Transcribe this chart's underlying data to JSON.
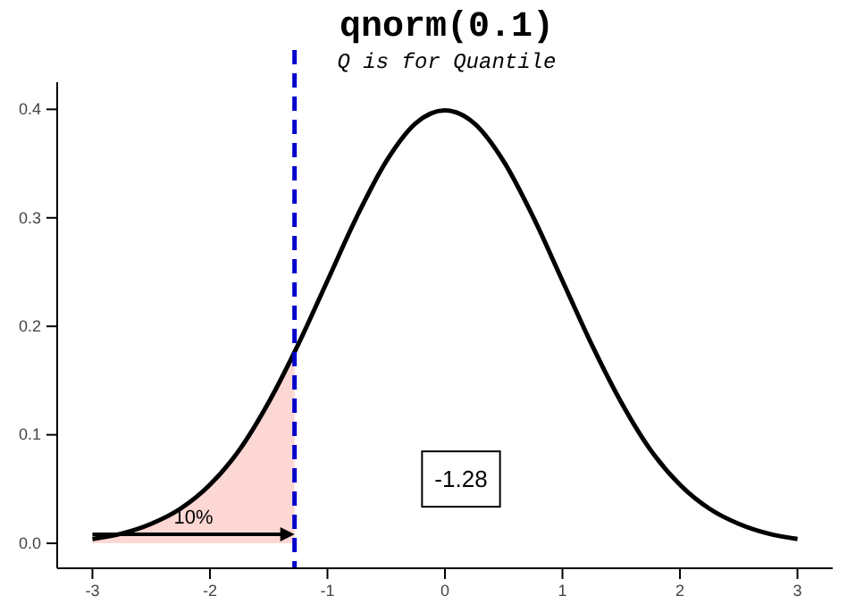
{
  "chart_data": {
    "type": "line",
    "title": "qnorm(0.1)",
    "subtitle": "Q is for Quantile",
    "xlim": [
      -3.3,
      3.3
    ],
    "ylim": [
      -0.023,
      0.425
    ],
    "xticks": [
      -3,
      -2,
      -1,
      0,
      1,
      2,
      3
    ],
    "yticks": [
      {
        "value": 0,
        "label": "0.0"
      },
      0.1,
      0.2,
      0.3,
      0.4
    ],
    "grid": false,
    "series": [
      {
        "type": "area",
        "color": "#fdd7d3",
        "x": [
          -3,
          -2.75,
          -2.5,
          -2.25,
          -2,
          -1.75,
          -1.5,
          -1.28
        ],
        "values": [
          0.004,
          0.009,
          0.018,
          0.032,
          0.054,
          0.086,
          0.13,
          0.176
        ]
      },
      {
        "color": "#000000",
        "x": [
          -3,
          -2.75,
          -2.5,
          -2.25,
          -2,
          -1.75,
          -1.5,
          -1.25,
          -1,
          -0.75,
          -0.5,
          -0.25,
          0,
          0.25,
          0.5,
          0.75,
          1,
          1.25,
          1.5,
          1.75,
          2,
          2.25,
          2.5,
          2.75,
          3
        ],
        "values": [
          0.004,
          0.009,
          0.018,
          0.032,
          0.054,
          0.086,
          0.13,
          0.183,
          0.242,
          0.301,
          0.352,
          0.387,
          0.399,
          0.387,
          0.352,
          0.301,
          0.242,
          0.183,
          0.13,
          0.086,
          0.054,
          0.032,
          0.018,
          0.009,
          0.004
        ]
      }
    ],
    "ref_lines": [
      {
        "axis": "x",
        "value": -1.28,
        "color": "#0000cc",
        "line_style": "dashed"
      }
    ],
    "annotations": [
      "10%",
      "-1.28"
    ]
  }
}
